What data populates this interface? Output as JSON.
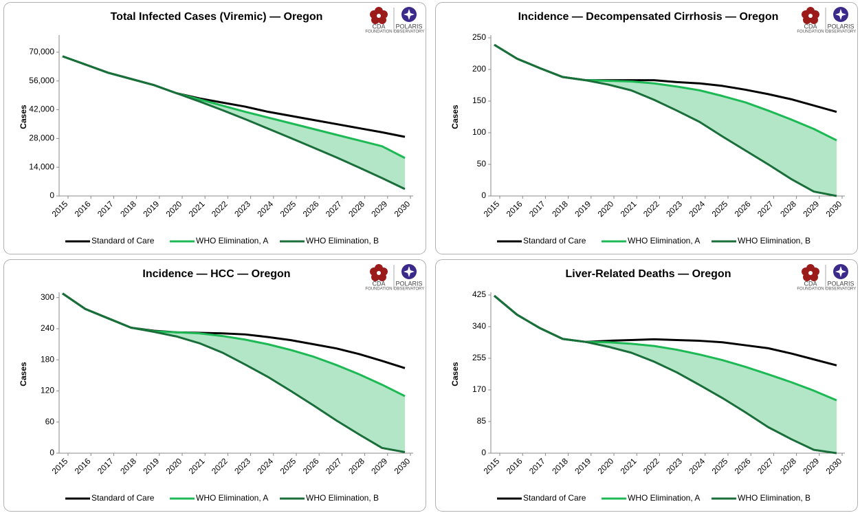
{
  "logo": {
    "left": "CDA",
    "left_sub": "FOUNDATION",
    "right": "POLARIS",
    "right_sub": "OBSERVATORY"
  },
  "chart_data": [
    {
      "type": "line",
      "title": "Total Infected Cases (Viremic) — Oregon",
      "y_label": "Cases",
      "categories": [
        "2015",
        "2016",
        "2017",
        "2018",
        "2019",
        "2020",
        "2021",
        "2022",
        "2023",
        "2024",
        "2025",
        "2026",
        "2027",
        "2028",
        "2029",
        "2030"
      ],
      "ylim": [
        0,
        77000
      ],
      "yticks": [
        0,
        {
          "value": 14000,
          "label": "14,000"
        },
        {
          "value": 28000,
          "label": "28,000"
        },
        {
          "value": 42000,
          "label": "42,000"
        },
        {
          "value": 56000,
          "label": "56,000"
        },
        {
          "value": 70000,
          "label": "70,000"
        }
      ],
      "band_color": "#b2e6c7",
      "series": [
        {
          "name": "Standard of Care",
          "color": "#000000",
          "values": [
            68000,
            64000,
            60000,
            57000,
            54000,
            50000,
            47500,
            45500,
            43500,
            41000,
            39000,
            37000,
            35000,
            33000,
            31000,
            28800
          ]
        },
        {
          "name": "WHO Elimination, A",
          "color": "#1db954",
          "values": [
            68000,
            64000,
            60000,
            57000,
            54000,
            50000,
            47000,
            44000,
            41000,
            38200,
            35400,
            32600,
            29800,
            27000,
            24200,
            18500
          ]
        },
        {
          "name": "WHO Elimination, B",
          "color": "#1a6e3a",
          "values": [
            68000,
            64000,
            60000,
            57000,
            54000,
            50000,
            46000,
            41800,
            37400,
            32800,
            28200,
            23500,
            18800,
            13800,
            8700,
            3400
          ]
        }
      ]
    },
    {
      "type": "line",
      "title": "Incidence — Decompensated Cirrhosis — Oregon",
      "y_label": "Cases",
      "categories": [
        "2015",
        "2016",
        "2017",
        "2018",
        "2019",
        "2020",
        "2021",
        "2022",
        "2023",
        "2024",
        "2025",
        "2026",
        "2027",
        "2028",
        "2029",
        "2030"
      ],
      "ylim": [
        0,
        250
      ],
      "yticks": [
        0,
        50,
        100,
        150,
        200,
        250
      ],
      "band_color": "#b2e6c7",
      "series": [
        {
          "name": "Standard of Care",
          "color": "#000000",
          "values": [
            239,
            217,
            202,
            188,
            183,
            183,
            183,
            183,
            180,
            178,
            174,
            168,
            161,
            153,
            143,
            133
          ]
        },
        {
          "name": "WHO Elimination, A",
          "color": "#1db954",
          "values": [
            239,
            217,
            202,
            188,
            183,
            182,
            181,
            178,
            173,
            167,
            158,
            148,
            135,
            121,
            106,
            88
          ]
        },
        {
          "name": "WHO Elimination, B",
          "color": "#1a6e3a",
          "values": [
            239,
            217,
            202,
            188,
            183,
            176,
            167,
            152,
            135,
            117,
            94,
            72,
            50,
            27,
            7,
            0
          ]
        }
      ]
    },
    {
      "type": "line",
      "title": "Incidence — HCC — Oregon",
      "y_label": "Cases",
      "categories": [
        "2015",
        "2016",
        "2017",
        "2018",
        "2019",
        "2020",
        "2021",
        "2022",
        "2023",
        "2024",
        "2025",
        "2026",
        "2027",
        "2028",
        "2029",
        "2030"
      ],
      "ylim": [
        0,
        305
      ],
      "yticks": [
        0,
        60,
        120,
        180,
        240,
        300
      ],
      "band_color": "#b2e6c7",
      "series": [
        {
          "name": "Standard of Care",
          "color": "#000000",
          "values": [
            308,
            278,
            260,
            242,
            236,
            233,
            232,
            231,
            229,
            224,
            218,
            210,
            202,
            191,
            178,
            164
          ]
        },
        {
          "name": "WHO Elimination, A",
          "color": "#1db954",
          "values": [
            308,
            278,
            260,
            242,
            235,
            233,
            231,
            226,
            219,
            210,
            199,
            186,
            170,
            152,
            132,
            110
          ]
        },
        {
          "name": "WHO Elimination, B",
          "color": "#1a6e3a",
          "values": [
            308,
            278,
            260,
            242,
            234,
            225,
            212,
            194,
            171,
            147,
            120,
            92,
            63,
            36,
            10,
            2
          ]
        }
      ]
    },
    {
      "type": "line",
      "title": "Liver-Related Deaths — Oregon",
      "y_label": "Cases",
      "categories": [
        "2015",
        "2016",
        "2017",
        "2018",
        "2019",
        "2020",
        "2021",
        "2022",
        "2023",
        "2024",
        "2025",
        "2026",
        "2027",
        "2028",
        "2029",
        "2030"
      ],
      "ylim": [
        0,
        425
      ],
      "yticks": [
        0,
        85,
        170,
        255,
        340,
        425
      ],
      "band_color": "#b2e6c7",
      "series": [
        {
          "name": "Standard of Care",
          "color": "#000000",
          "values": [
            423,
            372,
            336,
            307,
            299,
            302,
            304,
            306,
            304,
            302,
            298,
            290,
            282,
            268,
            252,
            236
          ]
        },
        {
          "name": "WHO Elimination, A",
          "color": "#1db954",
          "values": [
            423,
            372,
            336,
            307,
            299,
            298,
            294,
            288,
            278,
            265,
            250,
            232,
            212,
            191,
            168,
            142
          ]
        },
        {
          "name": "WHO Elimination, B",
          "color": "#1a6e3a",
          "values": [
            423,
            372,
            336,
            307,
            299,
            286,
            270,
            246,
            217,
            183,
            148,
            110,
            70,
            38,
            9,
            0
          ]
        }
      ]
    }
  ]
}
